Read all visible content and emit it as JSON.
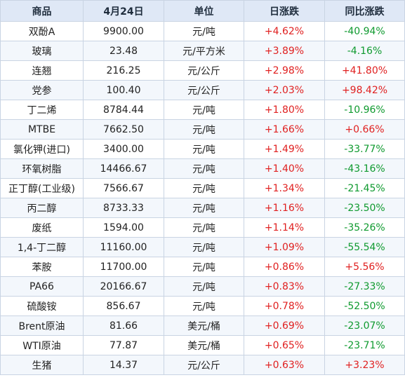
{
  "colors": {
    "up": "#e02020",
    "down": "#0f9a2f",
    "header_bg": "#dfe8f6",
    "border": "#c9d4e3"
  },
  "headers": [
    "商品",
    "4月24日",
    "单位",
    "日涨跌",
    "同比涨跌"
  ],
  "rows": [
    [
      "双酚A",
      "9900.00",
      "元/吨",
      "+4.62%",
      "-40.94%"
    ],
    [
      "玻璃",
      "23.48",
      "元/平方米",
      "+3.89%",
      "-4.16%"
    ],
    [
      "连翘",
      "216.25",
      "元/公斤",
      "+2.98%",
      "+41.80%"
    ],
    [
      "党参",
      "100.40",
      "元/公斤",
      "+2.03%",
      "+98.42%"
    ],
    [
      "丁二烯",
      "8784.44",
      "元/吨",
      "+1.80%",
      "-10.96%"
    ],
    [
      "MTBE",
      "7662.50",
      "元/吨",
      "+1.66%",
      "+0.66%"
    ],
    [
      "氯化钾(进口)",
      "3400.00",
      "元/吨",
      "+1.49%",
      "-33.77%"
    ],
    [
      "环氧树脂",
      "14466.67",
      "元/吨",
      "+1.40%",
      "-43.16%"
    ],
    [
      "正丁醇(工业级)",
      "7566.67",
      "元/吨",
      "+1.34%",
      "-21.45%"
    ],
    [
      "丙二醇",
      "8733.33",
      "元/吨",
      "+1.16%",
      "-23.50%"
    ],
    [
      "废纸",
      "1594.00",
      "元/吨",
      "+1.14%",
      "-35.26%"
    ],
    [
      "1,4-丁二醇",
      "11160.00",
      "元/吨",
      "+1.09%",
      "-55.54%"
    ],
    [
      "苯胺",
      "11700.00",
      "元/吨",
      "+0.86%",
      "+5.56%"
    ],
    [
      "PA66",
      "20166.67",
      "元/吨",
      "+0.83%",
      "-27.33%"
    ],
    [
      "硫酸铵",
      "856.67",
      "元/吨",
      "+0.78%",
      "-52.50%"
    ],
    [
      "Brent原油",
      "81.66",
      "美元/桶",
      "+0.69%",
      "-23.07%"
    ],
    [
      "WTI原油",
      "77.87",
      "美元/桶",
      "+0.65%",
      "-23.71%"
    ],
    [
      "生猪",
      "14.37",
      "元/公斤",
      "+0.63%",
      "+3.23%"
    ]
  ]
}
